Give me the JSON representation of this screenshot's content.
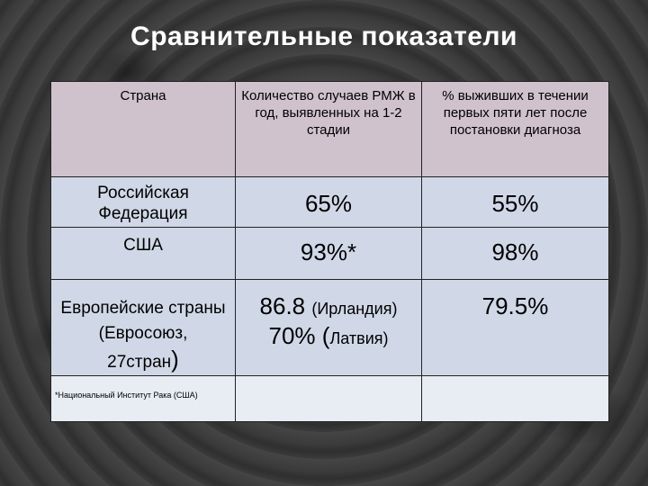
{
  "title": "Сравнительные показатели",
  "table": {
    "headers": [
      "Страна",
      "Количество случаев РМЖ в год, выявленных на 1-2 стадии",
      "% выживших в течении первых пяти лет после постановки диагноза"
    ],
    "rows": [
      {
        "country": "Российская Федерация",
        "early_detection": "65%",
        "survival": "55%"
      },
      {
        "country": "США",
        "early_detection": "93%*",
        "survival": "98%"
      },
      {
        "country_part1": "Европейские страны (Евросоюз,",
        "country_part2": "27стран",
        "country_paren": ")",
        "early_detection_1_value": "86.8",
        "early_detection_1_note": "(Ирландия)",
        "early_detection_2_value": "70%",
        "early_detection_2_paren": "(",
        "early_detection_2_note": "Латвия)",
        "survival": "79.5%"
      }
    ],
    "footnote": "*Национальный Институт Рака (США)"
  }
}
